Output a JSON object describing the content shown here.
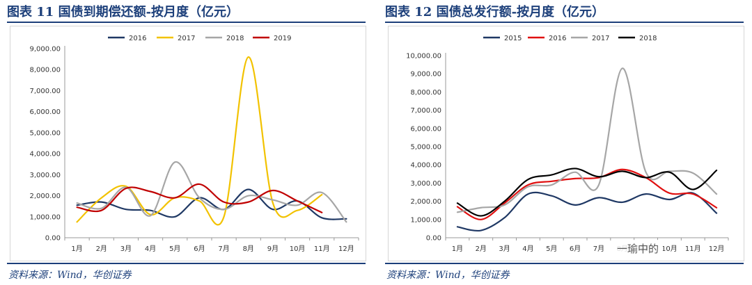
{
  "panels": [
    {
      "title": "图表 11   国债到期偿还额-按月度（亿元）",
      "source": "资料来源：Wind，华创证券"
    },
    {
      "title": "图表 12   国债总发行额-按月度（亿元）",
      "source": "资料来源：Wind，华创证券"
    }
  ],
  "watermark": "一瑜中的",
  "chart_data": [
    {
      "type": "line",
      "title": "国债到期偿还额-按月度（亿元）",
      "categories": [
        "1月",
        "2月",
        "3月",
        "4月",
        "5月",
        "6月",
        "7月",
        "8月",
        "9月",
        "10月",
        "11月",
        "12月"
      ],
      "ylim": [
        0,
        9000
      ],
      "yticks": [
        "0.00",
        "1,000.00",
        "2,000.00",
        "3,000.00",
        "4,000.00",
        "5,000.00",
        "6,000.00",
        "7,000.00",
        "8,000.00",
        "9,000.00"
      ],
      "legend_position": "top",
      "series": [
        {
          "name": "2016",
          "color": "#1f3864",
          "values": [
            1550,
            1700,
            1350,
            1300,
            1000,
            1900,
            1350,
            2300,
            1350,
            1750,
            950,
            900
          ]
        },
        {
          "name": "2017",
          "color": "#f2c200",
          "values": [
            750,
            1900,
            2450,
            1100,
            1900,
            1750,
            1000,
            8600,
            1650,
            1300,
            2050,
            null
          ]
        },
        {
          "name": "2018",
          "color": "#a6a6a6",
          "values": [
            1650,
            1400,
            2400,
            1050,
            3600,
            1900,
            1350,
            2000,
            1800,
            1550,
            2150,
            750
          ]
        },
        {
          "name": "2019",
          "color": "#c00000",
          "values": [
            1450,
            1300,
            2350,
            2200,
            1900,
            2550,
            1700,
            1700,
            2250,
            1750,
            1200,
            null
          ]
        }
      ]
    },
    {
      "type": "line",
      "title": "国债总发行额-按月度（亿元）",
      "categories": [
        "1月",
        "2月",
        "3月",
        "4月",
        "5月",
        "6月",
        "7月",
        "8月",
        "9月",
        "10月",
        "11月",
        "12月"
      ],
      "ylim": [
        0,
        10000
      ],
      "yticks": [
        "0.00",
        "1,000.00",
        "2,000.00",
        "3,000.00",
        "4,000.00",
        "5,000.00",
        "6,000.00",
        "7,000.00",
        "8,000.00",
        "9,000.00",
        "10,000.00"
      ],
      "legend_position": "top",
      "series": [
        {
          "name": "2015",
          "color": "#1f3864",
          "values": [
            600,
            400,
            1100,
            2400,
            2300,
            1800,
            2200,
            1950,
            2400,
            2100,
            2450,
            1350
          ]
        },
        {
          "name": "2016",
          "color": "#e01010",
          "values": [
            1700,
            1000,
            1900,
            2900,
            3100,
            3250,
            3300,
            3750,
            3300,
            2450,
            2400,
            1650
          ]
        },
        {
          "name": "2017",
          "color": "#a6a6a6",
          "values": [
            1400,
            1650,
            1800,
            2800,
            2900,
            3600,
            2900,
            9300,
            3600,
            3650,
            3550,
            2400
          ]
        },
        {
          "name": "2018",
          "color": "#000000",
          "values": [
            1900,
            1200,
            2000,
            3200,
            3450,
            3800,
            3350,
            3650,
            3300,
            3600,
            2650,
            3700
          ]
        }
      ]
    }
  ]
}
